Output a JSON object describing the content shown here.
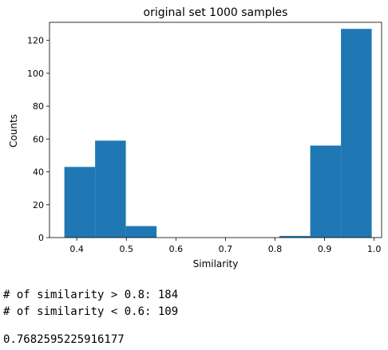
{
  "chart_data": {
    "type": "bar",
    "title": "original set 1000 samples",
    "xlabel": "Similarity",
    "ylabel": "Counts",
    "xlim": [
      0.345,
      1.015
    ],
    "ylim": [
      0,
      131
    ],
    "xticks": [
      0.4,
      0.5,
      0.6,
      0.7,
      0.8,
      0.9,
      1.0
    ],
    "xtick_labels": [
      "0.4",
      "0.5",
      "0.6",
      "0.7",
      "0.8",
      "0.9",
      "1.0"
    ],
    "yticks": [
      0,
      20,
      40,
      60,
      80,
      100,
      120
    ],
    "ytick_labels": [
      "0",
      "20",
      "40",
      "60",
      "80",
      "100",
      "120"
    ],
    "bin_edges": [
      0.375,
      0.437,
      0.499,
      0.561,
      0.623,
      0.685,
      0.747,
      0.809,
      0.871,
      0.933,
      0.995
    ],
    "values": [
      43,
      59,
      7,
      0,
      0,
      0,
      0,
      1,
      56,
      127
    ],
    "bar_color": "#1f77b4",
    "grid": false
  },
  "output": {
    "line1": "# of similarity > 0.8: 184",
    "line2": "# of similarity < 0.6: 109",
    "line3": "0.7682595225916177"
  }
}
